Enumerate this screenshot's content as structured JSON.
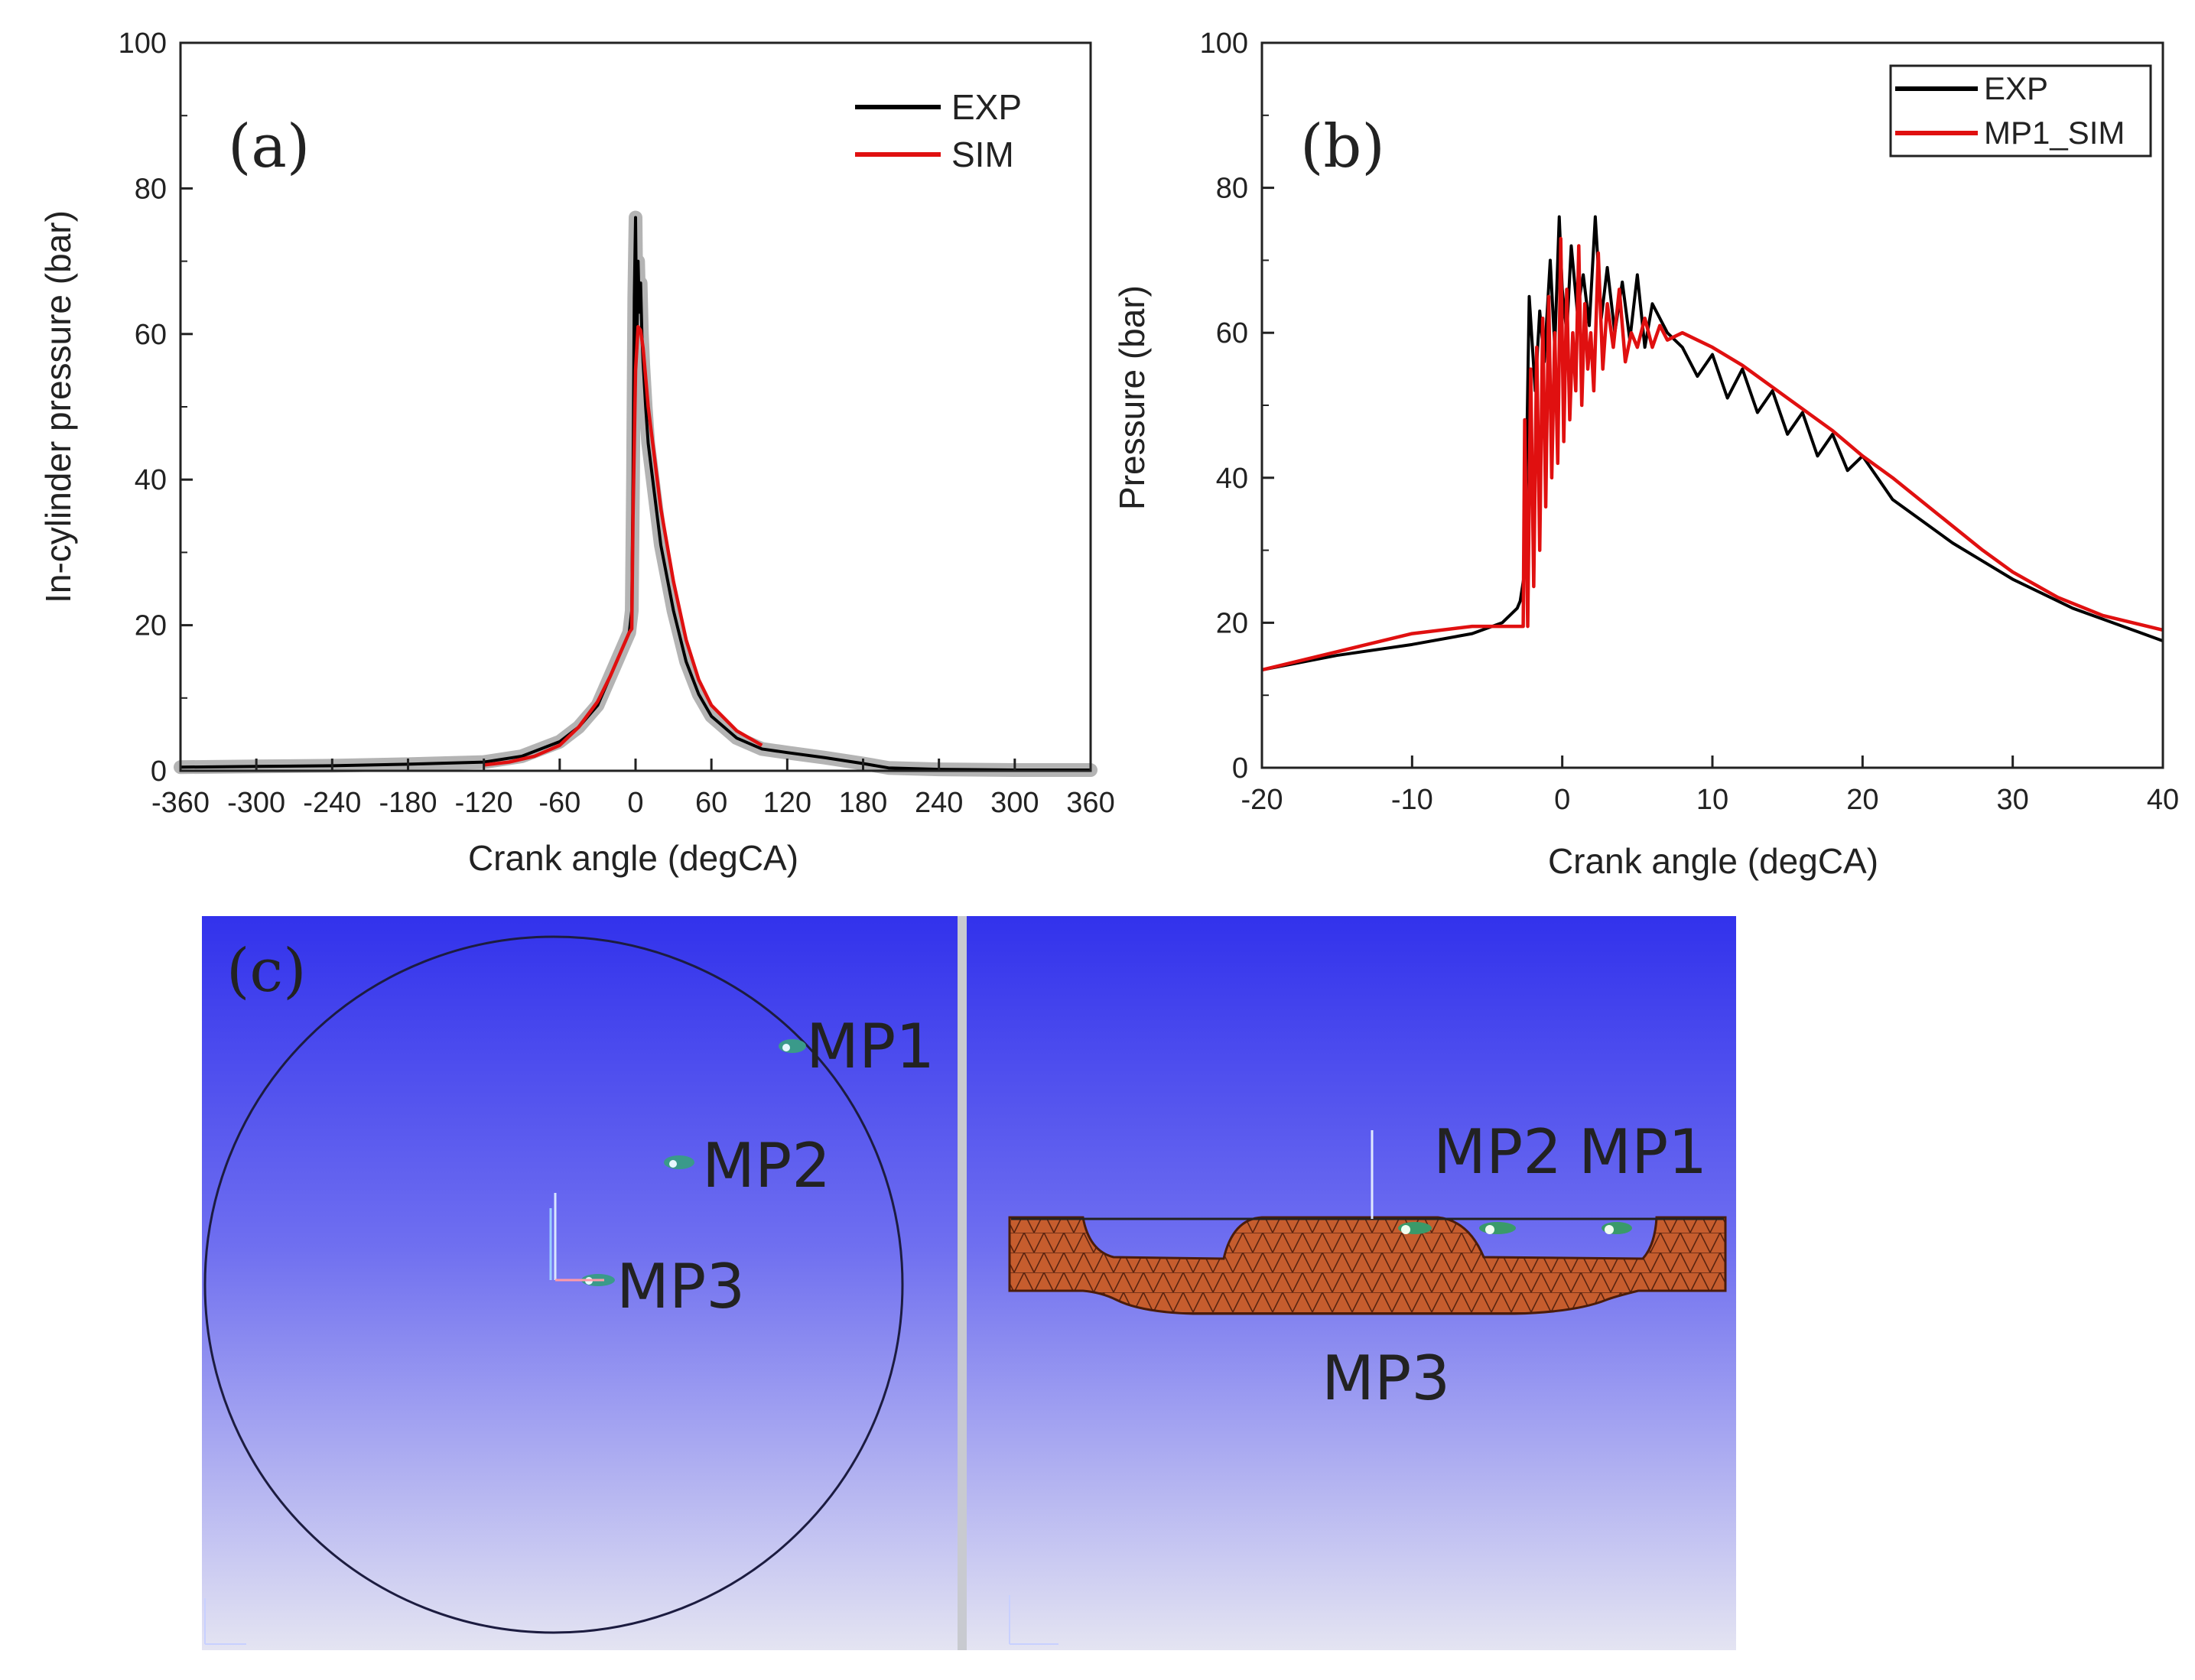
{
  "colors": {
    "exp": "#000000",
    "sim": "#e01010",
    "spread": "#b4b4b4",
    "view_top": "#3535ee",
    "view_bottom": "#e2e2f0",
    "mesh": "#c0592d",
    "mesh_line": "#5a2410"
  },
  "chart_data": [
    {
      "type": "line",
      "panel": "(a)",
      "xlabel": "Crank angle (degCA)",
      "ylabel": "In-cylinder pressure (bar)",
      "xlim": [
        -360,
        360
      ],
      "ylim": [
        0,
        100
      ],
      "xticks": [
        -360,
        -300,
        -240,
        -180,
        -120,
        -60,
        0,
        60,
        120,
        180,
        240,
        300,
        360
      ],
      "yticks": [
        0,
        20,
        40,
        60,
        80,
        100
      ],
      "grid": false,
      "legend": "top-right",
      "series": [
        {
          "name": "EXP",
          "color": "#000000",
          "x": [
            -360,
            -300,
            -240,
            -180,
            -120,
            -90,
            -60,
            -45,
            -30,
            -20,
            -10,
            -5,
            -3,
            -2,
            -1,
            0,
            1,
            2,
            3,
            4,
            5,
            6,
            8,
            10,
            15,
            20,
            30,
            40,
            50,
            60,
            80,
            100,
            120,
            150,
            180,
            200,
            240,
            300,
            360
          ],
          "y": [
            0.5,
            0.6,
            0.7,
            0.9,
            1.2,
            2,
            4,
            6,
            9,
            13,
            17,
            19,
            22,
            40,
            65,
            76,
            58,
            70,
            63,
            67,
            60,
            56,
            50,
            45,
            38,
            31,
            22,
            15,
            10.5,
            7.5,
            4.5,
            3,
            2.5,
            1.8,
            1,
            0.4,
            0.2,
            0.1,
            0.1
          ]
        },
        {
          "name": "SIM",
          "color": "#e01010",
          "x": [
            -120,
            -100,
            -80,
            -60,
            -45,
            -30,
            -20,
            -10,
            -5,
            -3,
            -2,
            0,
            2,
            4,
            6,
            8,
            10,
            15,
            20,
            30,
            40,
            50,
            60,
            80,
            100
          ],
          "y": [
            0.8,
            1.2,
            2,
            3.5,
            6,
            9.5,
            13,
            17,
            19,
            19.5,
            35,
            55,
            61,
            60.5,
            58,
            54,
            50,
            43,
            36,
            26,
            18,
            12.5,
            9,
            5.5,
            3.5
          ]
        }
      ]
    },
    {
      "type": "line",
      "panel": "(b)",
      "xlabel": "Crank angle (degCA)",
      "ylabel": "Pressure (bar)",
      "xlim": [
        -20,
        40
      ],
      "ylim": [
        0,
        100
      ],
      "xticks": [
        -20,
        -10,
        0,
        10,
        20,
        30,
        40
      ],
      "yticks": [
        0,
        20,
        40,
        60,
        80,
        100
      ],
      "grid": false,
      "legend": "top-right",
      "series": [
        {
          "name": "EXP",
          "color": "#000000",
          "x": [
            -20,
            -15,
            -10,
            -6,
            -4,
            -3,
            -2.8,
            -2.5,
            -2.2,
            -1.8,
            -1.5,
            -1.2,
            -0.8,
            -0.5,
            -0.2,
            0,
            0.3,
            0.6,
            1,
            1.4,
            1.8,
            2.2,
            2.6,
            3,
            3.5,
            4,
            4.5,
            5,
            5.5,
            6,
            7,
            8,
            9,
            10,
            11,
            12,
            13,
            14,
            15,
            16,
            17,
            18,
            19,
            20,
            22,
            24,
            26,
            28,
            30,
            32,
            34,
            36,
            38,
            40
          ],
          "y": [
            13.5,
            15.5,
            17,
            18.5,
            20,
            22,
            23,
            27,
            65,
            52,
            63,
            56,
            70,
            58,
            76,
            66,
            60,
            72,
            63,
            68,
            61,
            76,
            62,
            69,
            60,
            67,
            59,
            68,
            58,
            64,
            60,
            58,
            54,
            57,
            51,
            55,
            49,
            52,
            46,
            49,
            43,
            46,
            41,
            43,
            37,
            34,
            31,
            28.5,
            26,
            24,
            22,
            20.5,
            19,
            17.5
          ]
        },
        {
          "name": "MP1_SIM",
          "color": "#e01010",
          "x": [
            -20,
            -15,
            -10,
            -6,
            -3,
            -2.6,
            -2.5,
            -2.3,
            -2.1,
            -1.9,
            -1.7,
            -1.5,
            -1.3,
            -1.1,
            -0.9,
            -0.7,
            -0.5,
            -0.3,
            -0.1,
            0.1,
            0.3,
            0.5,
            0.7,
            0.9,
            1.1,
            1.3,
            1.5,
            1.7,
            1.9,
            2.1,
            2.4,
            2.7,
            3,
            3.4,
            3.8,
            4.2,
            4.6,
            5,
            5.5,
            6,
            6.5,
            7,
            8,
            9,
            10,
            12,
            15,
            18,
            20,
            22,
            25,
            28,
            30,
            33,
            36,
            40
          ],
          "y": [
            13.5,
            16,
            18.5,
            19.5,
            19.5,
            19.5,
            48,
            19.5,
            55,
            25,
            58,
            30,
            62,
            36,
            65,
            40,
            60,
            42,
            73,
            45,
            66,
            48,
            60,
            52,
            72,
            50,
            64,
            55,
            60,
            52,
            71,
            55,
            64,
            58,
            66,
            56,
            60,
            58,
            62,
            58,
            61,
            59,
            60,
            59,
            58,
            55.5,
            51,
            46.5,
            43,
            40,
            35,
            30,
            27,
            23.5,
            21,
            19
          ]
        }
      ]
    }
  ],
  "panel_c": {
    "label": "(c)",
    "top_view": {
      "mp1": "MP1",
      "mp2": "MP2",
      "mp3": "MP3"
    },
    "side_view": {
      "mp2": "MP2",
      "mp1": "MP1",
      "mp3": "MP3"
    }
  }
}
